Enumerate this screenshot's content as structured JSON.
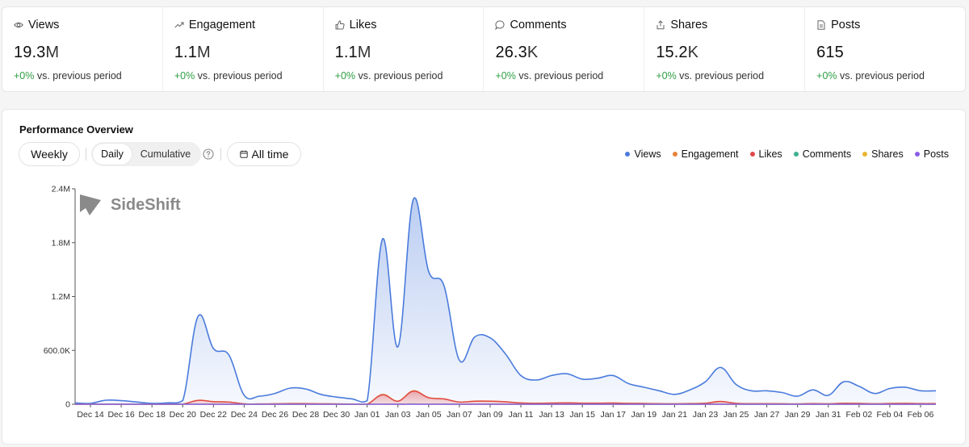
{
  "stats": [
    {
      "icon": "eye-icon",
      "label": "Views",
      "value": "19.3",
      "unit": "M",
      "delta": "+0%",
      "delta_text": " vs. previous period"
    },
    {
      "icon": "trending-up-icon",
      "label": "Engagement",
      "value": "1.1",
      "unit": "M",
      "delta": "+0%",
      "delta_text": " vs. previous period"
    },
    {
      "icon": "thumbs-up-icon",
      "label": "Likes",
      "value": "1.1",
      "unit": "M",
      "delta": "+0%",
      "delta_text": " vs. previous period"
    },
    {
      "icon": "comment-icon",
      "label": "Comments",
      "value": "26.3",
      "unit": "K",
      "delta": "+0%",
      "delta_text": " vs. previous period"
    },
    {
      "icon": "share-icon",
      "label": "Shares",
      "value": "15.2",
      "unit": "K",
      "delta": "+0%",
      "delta_text": " vs. previous period"
    },
    {
      "icon": "document-icon",
      "label": "Posts",
      "value": "615",
      "unit": "",
      "delta": "+0%",
      "delta_text": " vs. previous period"
    }
  ],
  "panel": {
    "title": "Performance Overview",
    "weekly_label": "Weekly",
    "daily_label": "Daily",
    "cumulative_label": "Cumulative",
    "all_time_label": "All time",
    "watermark": "SideShift"
  },
  "colors": {
    "views": "#4a7bdc",
    "engagement": "#e8823a",
    "likes": "#e04848",
    "comments": "#3fb08f",
    "shares": "#e8b530",
    "posts": "#8a5ce6",
    "positive": "#2f9e44"
  },
  "chart_data": {
    "type": "area",
    "title": "Performance Overview",
    "ylim": [
      0,
      2400000
    ],
    "y_ticks": [
      0,
      600000,
      1200000,
      1800000,
      2400000
    ],
    "y_tick_labels": [
      "0",
      "600.0K",
      "1.2M",
      "1.8M",
      "2.4M"
    ],
    "x_tick_labels": [
      "Dec 14",
      "Dec 16",
      "Dec 18",
      "Dec 20",
      "Dec 22",
      "Dec 24",
      "Dec 26",
      "Dec 28",
      "Dec 30",
      "Jan 01",
      "Jan 03",
      "Jan 05",
      "Jan 07",
      "Jan 09",
      "Jan 11",
      "Jan 13",
      "Jan 15",
      "Jan 17",
      "Jan 19",
      "Jan 21",
      "Jan 23",
      "Jan 25",
      "Jan 27",
      "Jan 29",
      "Jan 31",
      "Feb 02",
      "Feb 04",
      "Feb 06"
    ],
    "x_tick_days": [
      1,
      3,
      5,
      7,
      9,
      11,
      13,
      15,
      17,
      19,
      21,
      23,
      25,
      27,
      29,
      31,
      33,
      35,
      37,
      39,
      41,
      43,
      45,
      47,
      49,
      51,
      53,
      55
    ],
    "days": [
      0,
      1,
      2,
      3,
      4,
      5,
      6,
      7,
      8,
      9,
      10,
      11,
      12,
      13,
      14,
      15,
      16,
      17,
      18,
      19,
      20,
      21,
      22,
      23,
      24,
      25,
      26,
      27,
      28,
      29,
      30,
      31,
      32,
      33,
      34,
      35,
      36,
      37,
      38,
      39,
      40,
      41,
      42,
      43,
      44,
      45,
      46,
      47,
      48,
      49,
      50,
      51,
      52,
      53,
      54,
      55,
      56
    ],
    "legend": [
      "Views",
      "Engagement",
      "Likes",
      "Comments",
      "Shares",
      "Posts"
    ],
    "series": [
      {
        "name": "Views",
        "key": "views",
        "fill": true,
        "values": [
          15000,
          10000,
          45000,
          40000,
          25000,
          10000,
          15000,
          40000,
          980000,
          620000,
          550000,
          100000,
          90000,
          120000,
          180000,
          170000,
          110000,
          80000,
          60000,
          40000,
          1840000,
          640000,
          2280000,
          1480000,
          1320000,
          490000,
          750000,
          740000,
          560000,
          320000,
          270000,
          320000,
          340000,
          280000,
          290000,
          320000,
          230000,
          190000,
          150000,
          110000,
          160000,
          250000,
          410000,
          220000,
          150000,
          150000,
          130000,
          90000,
          160000,
          100000,
          250000,
          200000,
          120000,
          175000,
          190000,
          150000,
          150000
        ]
      },
      {
        "name": "Engagement",
        "key": "engagement",
        "fill": false,
        "values": [
          1000,
          1000,
          2000,
          2000,
          1000,
          1000,
          1000,
          2000,
          44000,
          30000,
          25000,
          5000,
          4000,
          5000,
          8000,
          8000,
          5000,
          4000,
          3000,
          2000,
          110000,
          35000,
          150000,
          75000,
          60000,
          25000,
          35000,
          35000,
          28000,
          15000,
          12000,
          14000,
          16000,
          13000,
          13000,
          14000,
          11000,
          9000,
          7000,
          5000,
          8000,
          12000,
          32000,
          11000,
          7000,
          7000,
          6000,
          4000,
          8000,
          5000,
          12000,
          10000,
          6000,
          9000,
          10000,
          8000,
          8000
        ]
      },
      {
        "name": "Likes",
        "key": "likes",
        "fill": true,
        "values": [
          1000,
          1000,
          2000,
          2000,
          1000,
          1000,
          1000,
          2000,
          42000,
          28000,
          24000,
          5000,
          4000,
          5000,
          7000,
          7000,
          5000,
          4000,
          3000,
          2000,
          105000,
          33000,
          145000,
          72000,
          58000,
          24000,
          33000,
          33000,
          27000,
          14000,
          11000,
          13000,
          15000,
          12000,
          12000,
          13000,
          10000,
          8000,
          6000,
          5000,
          7000,
          11000,
          30000,
          10000,
          6000,
          6000,
          5000,
          4000,
          7000,
          5000,
          11000,
          9000,
          5000,
          8000,
          9000,
          7000,
          7000
        ]
      },
      {
        "name": "Comments",
        "key": "comments",
        "fill": false,
        "values": [
          0,
          0,
          0,
          0,
          0,
          0,
          0,
          0,
          1000,
          700,
          600,
          100,
          100,
          100,
          200,
          200,
          100,
          100,
          100,
          0,
          2500,
          800,
          3500,
          1800,
          1500,
          600,
          800,
          800,
          700,
          400,
          300,
          300,
          400,
          300,
          300,
          300,
          300,
          200,
          200,
          100,
          200,
          300,
          700,
          300,
          200,
          200,
          100,
          100,
          200,
          100,
          300,
          200,
          100,
          200,
          200,
          200,
          200
        ]
      },
      {
        "name": "Shares",
        "key": "shares",
        "fill": false,
        "values": [
          0,
          0,
          0,
          0,
          0,
          0,
          0,
          0,
          600,
          400,
          350,
          60,
          50,
          70,
          100,
          100,
          60,
          50,
          40,
          20,
          1400,
          450,
          2000,
          1000,
          900,
          350,
          450,
          450,
          400,
          200,
          160,
          180,
          200,
          170,
          170,
          180,
          140,
          110,
          90,
          60,
          90,
          150,
          400,
          130,
          90,
          90,
          70,
          50,
          90,
          60,
          150,
          120,
          70,
          100,
          110,
          90,
          90
        ]
      },
      {
        "name": "Posts",
        "key": "posts",
        "fill": false,
        "values": [
          10,
          10,
          11,
          11,
          10,
          10,
          10,
          11,
          12,
          12,
          11,
          10,
          10,
          11,
          12,
          11,
          10,
          10,
          10,
          10,
          12,
          11,
          13,
          12,
          12,
          11,
          11,
          11,
          11,
          10,
          10,
          11,
          11,
          10,
          10,
          11,
          10,
          10,
          10,
          10,
          10,
          11,
          12,
          10,
          10,
          10,
          10,
          10,
          11,
          10,
          11,
          11,
          10,
          11,
          11,
          10,
          10
        ]
      }
    ]
  }
}
